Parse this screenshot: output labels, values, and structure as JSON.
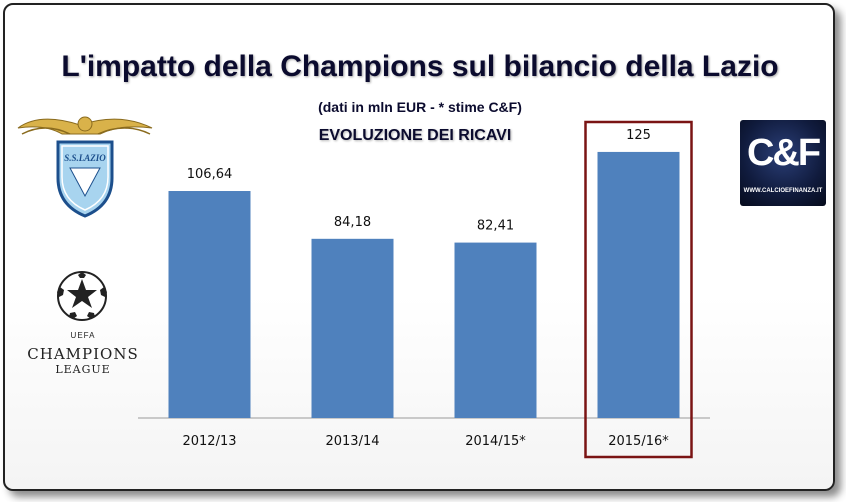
{
  "chart_data": {
    "type": "bar",
    "title": "L'impatto della Champions sul bilancio della Lazio",
    "subtitle": "(dati in mln EUR - * stime C&F)",
    "section_title": "EVOLUZIONE DEI RICAVI",
    "categories": [
      "2012/13",
      "2013/14",
      "2014/15*",
      "2015/16*"
    ],
    "values": [
      106.64,
      84.18,
      82.41,
      125
    ],
    "value_labels": [
      "106,64",
      "84,18",
      "82,41",
      "125"
    ],
    "xlabel": "",
    "ylabel": "",
    "ylim": [
      0,
      140
    ],
    "grid": false,
    "highlighted_category": "2015/16*",
    "colors": {
      "bar": "#4f81bd",
      "highlight_box": "#7a1414",
      "title": "#0b0b2e"
    }
  },
  "logos": {
    "lazio": {
      "text": "S.S.LAZIO",
      "icon": "lazio-eagle-crest-icon"
    },
    "champions_league": {
      "uefa": "UEFA",
      "line1": "CHAMPIONS",
      "line2": "LEAGUE",
      "icon": "starball-icon"
    },
    "cf": {
      "text": "C&F",
      "url": "WWW.CALCIOEFINANZA.IT"
    }
  }
}
